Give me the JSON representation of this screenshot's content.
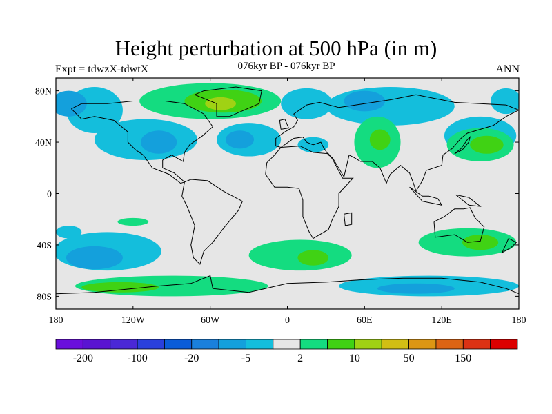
{
  "title": "Height perturbation at 500 hPa (in m)",
  "subtitle": "076kyr BP - 076kyr BP",
  "expt_label": "Expt = tdwzX-tdwtX",
  "season": "ANN",
  "map": {
    "lon_range": [
      -180,
      180
    ],
    "lat_range": [
      -90,
      90
    ],
    "background_color": "#e6e6e6",
    "lat_ticks": [
      {
        "lat": 80,
        "label": "80N"
      },
      {
        "lat": 40,
        "label": "40N"
      },
      {
        "lat": 0,
        "label": "0"
      },
      {
        "lat": -40,
        "label": "40S"
      },
      {
        "lat": -80,
        "label": "80S"
      }
    ],
    "lon_ticks": [
      {
        "lon": -180,
        "label": "180"
      },
      {
        "lon": -120,
        "label": "120W"
      },
      {
        "lon": -60,
        "label": "60W"
      },
      {
        "lon": 0,
        "label": "0"
      },
      {
        "lon": 60,
        "label": "60E"
      },
      {
        "lon": 120,
        "label": "120E"
      },
      {
        "lon": 180,
        "label": "180"
      }
    ]
  },
  "colorbar": {
    "colors": [
      "#6a0fdc",
      "#5a14d2",
      "#4a28d6",
      "#2a40dc",
      "#0a5cd8",
      "#1a80dc",
      "#14a0dc",
      "#14bedc",
      "#e6e6e6",
      "#14dc80",
      "#40d214",
      "#a0d214",
      "#d2be14",
      "#dc9614",
      "#dc6414",
      "#dc3214",
      "#dc0000"
    ],
    "labels": [
      {
        "boundary": 1,
        "text": "-200"
      },
      {
        "boundary": 3,
        "text": "-100"
      },
      {
        "boundary": 5,
        "text": "-20"
      },
      {
        "boundary": 7,
        "text": "-5"
      },
      {
        "boundary": 9,
        "text": "2"
      },
      {
        "boundary": 11,
        "text": "10"
      },
      {
        "boundary": 13,
        "text": "50"
      },
      {
        "boundary": 15,
        "text": "150"
      }
    ]
  },
  "field_blobs": [
    {
      "name": "sub-5-pacific-north",
      "level": "#14bedc",
      "lon": -150,
      "lat": 65,
      "rlon": 22,
      "rlat": 18
    },
    {
      "name": "sub-5-npacific",
      "level": "#14bedc",
      "lon": -110,
      "lat": 42,
      "rlon": 40,
      "rlat": 16
    },
    {
      "name": "sub-20-npacific",
      "level": "#14a0dc",
      "lon": -100,
      "lat": 40,
      "rlon": 14,
      "rlat": 9
    },
    {
      "name": "sub-20-alaska",
      "level": "#14a0dc",
      "lon": -170,
      "lat": 70,
      "rlon": 14,
      "rlat": 10
    },
    {
      "name": "sub-5-natlantic",
      "level": "#14bedc",
      "lon": -30,
      "lat": 42,
      "rlon": 25,
      "rlat": 13
    },
    {
      "name": "sub-20-natlantic",
      "level": "#14a0dc",
      "lon": -37,
      "lat": 42,
      "rlon": 11,
      "rlat": 7
    },
    {
      "name": "sub-5-europe",
      "level": "#14bedc",
      "lon": 15,
      "lat": 70,
      "rlon": 20,
      "rlat": 12
    },
    {
      "name": "sub-5-siberia",
      "level": "#14bedc",
      "lon": 80,
      "lat": 68,
      "rlon": 50,
      "rlat": 15
    },
    {
      "name": "sub-20-siberia",
      "level": "#14a0dc",
      "lon": 60,
      "lat": 72,
      "rlon": 16,
      "rlat": 8
    },
    {
      "name": "sub-5-nwpacific",
      "level": "#14bedc",
      "lon": 150,
      "lat": 45,
      "rlon": 28,
      "rlat": 15
    },
    {
      "name": "sub-5-chukchi",
      "level": "#14bedc",
      "lon": 170,
      "lat": 72,
      "rlon": 12,
      "rlat": 10
    },
    {
      "name": "sub-5-mideast",
      "level": "#14bedc",
      "lon": 20,
      "lat": 38,
      "rlon": 12,
      "rlat": 6
    },
    {
      "name": "pos-2-greenland",
      "level": "#14dc80",
      "lon": -60,
      "lat": 72,
      "rlon": 55,
      "rlat": 14
    },
    {
      "name": "pos-10-greenland",
      "level": "#40d214",
      "lon": -50,
      "lat": 72,
      "rlon": 30,
      "rlat": 9
    },
    {
      "name": "pos-50-greenland",
      "level": "#a0d214",
      "lon": -52,
      "lat": 70,
      "rlon": 12,
      "rlat": 5
    },
    {
      "name": "pos-2-asia",
      "level": "#14dc80",
      "lon": 70,
      "lat": 40,
      "rlon": 18,
      "rlat": 20
    },
    {
      "name": "pos-10-asia",
      "level": "#40d214",
      "lon": 72,
      "lat": 42,
      "rlon": 8,
      "rlat": 8
    },
    {
      "name": "pos-2-japan",
      "level": "#14dc80",
      "lon": 150,
      "lat": 38,
      "rlon": 26,
      "rlat": 13
    },
    {
      "name": "pos-10-japan",
      "level": "#40d214",
      "lon": 155,
      "lat": 38,
      "rlon": 13,
      "rlat": 7
    },
    {
      "name": "sub-5-spacific",
      "level": "#14bedc",
      "lon": -140,
      "lat": -45,
      "rlon": 42,
      "rlat": 15
    },
    {
      "name": "sub-20-spacific",
      "level": "#14a0dc",
      "lon": -150,
      "lat": -50,
      "rlon": 22,
      "rlat": 9
    },
    {
      "name": "sub-5-sepacific",
      "level": "#14bedc",
      "lon": -170,
      "lat": -30,
      "rlon": 10,
      "rlat": 5
    },
    {
      "name": "pos-2-satlantic",
      "level": "#14dc80",
      "lon": 10,
      "lat": -48,
      "rlon": 40,
      "rlat": 12
    },
    {
      "name": "pos-10-satlantic",
      "level": "#40d214",
      "lon": 20,
      "lat": -50,
      "rlon": 12,
      "rlat": 6
    },
    {
      "name": "pos-2-australia",
      "level": "#14dc80",
      "lon": 140,
      "lat": -38,
      "rlon": 38,
      "rlat": 11
    },
    {
      "name": "pos-10-australia",
      "level": "#40d214",
      "lon": 150,
      "lat": -38,
      "rlon": 14,
      "rlat": 6
    },
    {
      "name": "pos-2-southern",
      "level": "#14dc80",
      "lon": -90,
      "lat": -72,
      "rlon": 75,
      "rlat": 8
    },
    {
      "name": "pos-10-southern",
      "level": "#40d214",
      "lon": -130,
      "lat": -73,
      "rlon": 30,
      "rlat": 4
    },
    {
      "name": "sub-5-antarctic",
      "level": "#14bedc",
      "lon": 110,
      "lat": -72,
      "rlon": 70,
      "rlat": 8
    },
    {
      "name": "sub-20-antarctic",
      "level": "#14a0dc",
      "lon": 100,
      "lat": -74,
      "rlon": 30,
      "rlat": 4
    },
    {
      "name": "pos-2-southpac",
      "level": "#14dc80",
      "lon": -120,
      "lat": -22,
      "rlon": 12,
      "rlat": 3
    }
  ],
  "coastlines": [
    {
      "name": "north-america",
      "points": [
        [
          -168,
          66
        ],
        [
          -160,
          70
        ],
        [
          -140,
          70
        ],
        [
          -120,
          72
        ],
        [
          -95,
          72
        ],
        [
          -80,
          70
        ],
        [
          -65,
          62
        ],
        [
          -58,
          52
        ],
        [
          -66,
          45
        ],
        [
          -76,
          38
        ],
        [
          -80,
          32
        ],
        [
          -81,
          25
        ],
        [
          -90,
          30
        ],
        [
          -97,
          26
        ],
        [
          -97,
          20
        ],
        [
          -88,
          16
        ],
        [
          -80,
          9
        ],
        [
          -83,
          8
        ],
        [
          -92,
          15
        ],
        [
          -105,
          20
        ],
        [
          -112,
          30
        ],
        [
          -118,
          34
        ],
        [
          -124,
          40
        ],
        [
          -124,
          48
        ],
        [
          -135,
          57
        ],
        [
          -150,
          60
        ],
        [
          -160,
          58
        ],
        [
          -168,
          66
        ]
      ]
    },
    {
      "name": "greenland",
      "points": [
        [
          -55,
          60
        ],
        [
          -45,
          60
        ],
        [
          -22,
          70
        ],
        [
          -20,
          80
        ],
        [
          -40,
          83
        ],
        [
          -65,
          80
        ],
        [
          -72,
          77
        ],
        [
          -55,
          70
        ],
        [
          -55,
          60
        ]
      ]
    },
    {
      "name": "south-america",
      "points": [
        [
          -80,
          9
        ],
        [
          -75,
          11
        ],
        [
          -62,
          10
        ],
        [
          -50,
          2
        ],
        [
          -35,
          -6
        ],
        [
          -38,
          -13
        ],
        [
          -48,
          -25
        ],
        [
          -58,
          -38
        ],
        [
          -65,
          -45
        ],
        [
          -68,
          -55
        ],
        [
          -73,
          -50
        ],
        [
          -75,
          -40
        ],
        [
          -72,
          -25
        ],
        [
          -78,
          -10
        ],
        [
          -82,
          -2
        ],
        [
          -80,
          9
        ]
      ]
    },
    {
      "name": "europe-asia",
      "points": [
        [
          -9,
          37
        ],
        [
          -9,
          43
        ],
        [
          -2,
          48
        ],
        [
          5,
          52
        ],
        [
          8,
          57
        ],
        [
          5,
          62
        ],
        [
          15,
          69
        ],
        [
          25,
          71
        ],
        [
          40,
          67
        ],
        [
          60,
          70
        ],
        [
          80,
          73
        ],
        [
          100,
          77
        ],
        [
          130,
          71
        ],
        [
          150,
          70
        ],
        [
          170,
          69
        ],
        [
          180,
          65
        ],
        [
          170,
          60
        ],
        [
          160,
          53
        ],
        [
          140,
          47
        ],
        [
          135,
          43
        ],
        [
          128,
          35
        ],
        [
          121,
          30
        ],
        [
          120,
          22
        ],
        [
          108,
          18
        ],
        [
          105,
          10
        ],
        [
          100,
          2
        ],
        [
          98,
          8
        ],
        [
          95,
          16
        ],
        [
          88,
          22
        ],
        [
          80,
          15
        ],
        [
          77,
          8
        ],
        [
          72,
          20
        ],
        [
          66,
          25
        ],
        [
          57,
          25
        ],
        [
          52,
          28
        ],
        [
          48,
          30
        ],
        [
          44,
          13
        ],
        [
          35,
          28
        ],
        [
          32,
          30
        ],
        [
          28,
          36
        ],
        [
          26,
          40
        ],
        [
          20,
          38
        ],
        [
          15,
          40
        ],
        [
          12,
          44
        ],
        [
          5,
          43
        ],
        [
          -5,
          36
        ],
        [
          -9,
          37
        ]
      ]
    },
    {
      "name": "africa",
      "points": [
        [
          -17,
          15
        ],
        [
          -16,
          24
        ],
        [
          -10,
          30
        ],
        [
          -5,
          36
        ],
        [
          10,
          37
        ],
        [
          20,
          32
        ],
        [
          32,
          31
        ],
        [
          35,
          27
        ],
        [
          43,
          12
        ],
        [
          51,
          12
        ],
        [
          40,
          0
        ],
        [
          40,
          -10
        ],
        [
          35,
          -20
        ],
        [
          32,
          -28
        ],
        [
          20,
          -35
        ],
        [
          17,
          -30
        ],
        [
          12,
          -18
        ],
        [
          12,
          -5
        ],
        [
          9,
          4
        ],
        [
          0,
          5
        ],
        [
          -10,
          5
        ],
        [
          -17,
          15
        ]
      ]
    },
    {
      "name": "australia",
      "points": [
        [
          114,
          -22
        ],
        [
          122,
          -18
        ],
        [
          130,
          -12
        ],
        [
          137,
          -12
        ],
        [
          142,
          -11
        ],
        [
          146,
          -19
        ],
        [
          153,
          -26
        ],
        [
          150,
          -37
        ],
        [
          140,
          -38
        ],
        [
          135,
          -35
        ],
        [
          130,
          -32
        ],
        [
          115,
          -34
        ],
        [
          114,
          -22
        ]
      ]
    },
    {
      "name": "madagascar",
      "points": [
        [
          44,
          -16
        ],
        [
          50,
          -15
        ],
        [
          50,
          -24
        ],
        [
          45,
          -25
        ],
        [
          44,
          -16
        ]
      ]
    },
    {
      "name": "uk",
      "points": [
        [
          -5,
          50
        ],
        [
          1,
          51
        ],
        [
          -2,
          58
        ],
        [
          -6,
          57
        ],
        [
          -5,
          50
        ]
      ]
    },
    {
      "name": "japan",
      "points": [
        [
          130,
          31
        ],
        [
          136,
          34
        ],
        [
          141,
          40
        ],
        [
          142,
          44
        ],
        [
          140,
          42
        ],
        [
          135,
          35
        ],
        [
          130,
          31
        ]
      ]
    },
    {
      "name": "indonesia",
      "points": [
        [
          95,
          5
        ],
        [
          105,
          -6
        ],
        [
          115,
          -8
        ],
        [
          120,
          -9
        ],
        [
          117,
          -4
        ],
        [
          110,
          -2
        ],
        [
          105,
          -2
        ],
        [
          95,
          5
        ]
      ]
    },
    {
      "name": "new-guinea",
      "points": [
        [
          131,
          -1
        ],
        [
          141,
          -3
        ],
        [
          150,
          -10
        ],
        [
          141,
          -9
        ],
        [
          131,
          -1
        ]
      ]
    },
    {
      "name": "new-zealand",
      "points": [
        [
          172,
          -35
        ],
        [
          178,
          -38
        ],
        [
          174,
          -42
        ],
        [
          167,
          -46
        ],
        [
          172,
          -35
        ]
      ]
    },
    {
      "name": "antarctica",
      "points": [
        [
          -180,
          -78
        ],
        [
          -150,
          -77
        ],
        [
          -120,
          -74
        ],
        [
          -100,
          -72
        ],
        [
          -75,
          -70
        ],
        [
          -60,
          -64
        ],
        [
          -58,
          -74
        ],
        [
          -30,
          -77
        ],
        [
          0,
          -70
        ],
        [
          30,
          -69
        ],
        [
          60,
          -67
        ],
        [
          90,
          -66
        ],
        [
          120,
          -66
        ],
        [
          150,
          -69
        ],
        [
          170,
          -74
        ],
        [
          180,
          -78
        ]
      ]
    }
  ]
}
